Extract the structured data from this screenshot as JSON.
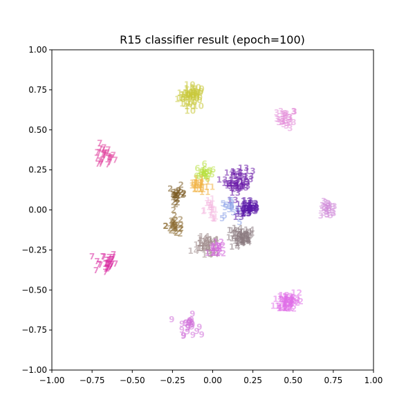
{
  "chart_data": {
    "type": "scatter",
    "title": "R15 classifier result (epoch=100)",
    "xlabel": "",
    "ylabel": "",
    "xlim": [
      -1.0,
      1.0
    ],
    "ylim": [
      -1.0,
      1.0
    ],
    "x_ticks": [
      "−1.00",
      "−0.75",
      "−0.50",
      "−0.25",
      "0.00",
      "0.25",
      "0.50",
      "0.75",
      "1.00"
    ],
    "y_ticks": [
      "−1.00",
      "−0.75",
      "−0.50",
      "−0.25",
      "0.00",
      "0.25",
      "0.50",
      "0.75",
      "1.00"
    ],
    "grid": false,
    "marker": "class label text",
    "clusters": [
      {
        "label": "10",
        "center": [
          -0.13,
          0.71
        ],
        "spread": 0.035,
        "count": 32,
        "color": "#c8c83a"
      },
      {
        "label": "3",
        "center": [
          0.46,
          0.57
        ],
        "spread": 0.03,
        "count": 28,
        "color": "#e48ed8"
      },
      {
        "label": "7",
        "center": [
          -0.68,
          0.33
        ],
        "spread": 0.035,
        "count": 28,
        "color": "#e0409c"
      },
      {
        "label": "3",
        "center": [
          0.72,
          0.0
        ],
        "spread": 0.025,
        "count": 24,
        "color": "#d08ad8"
      },
      {
        "label": "7",
        "center": [
          -0.67,
          -0.33
        ],
        "spread": 0.035,
        "count": 30,
        "color": "#d82aa0"
      },
      {
        "label": "12",
        "center": [
          0.47,
          -0.57
        ],
        "spread": 0.035,
        "count": 32,
        "color": "#e070e8"
      },
      {
        "label": "9",
        "center": [
          -0.15,
          -0.72
        ],
        "spread": 0.03,
        "count": 24,
        "color": "#d070d8"
      },
      {
        "label": "6",
        "center": [
          -0.05,
          0.23
        ],
        "spread": 0.025,
        "count": 22,
        "color": "#b8e040"
      },
      {
        "label": "11",
        "center": [
          -0.09,
          0.15
        ],
        "spread": 0.025,
        "count": 14,
        "color": "#f0b040"
      },
      {
        "label": "13",
        "center": [
          0.16,
          0.18
        ],
        "spread": 0.035,
        "count": 32,
        "color": "#6a1aa8"
      },
      {
        "label": "2",
        "center": [
          -0.22,
          0.1
        ],
        "spread": 0.025,
        "count": 24,
        "color": "#7a5a20"
      },
      {
        "label": "1",
        "center": [
          -0.01,
          0.0
        ],
        "spread": 0.03,
        "count": 20,
        "color": "#f4b8e0"
      },
      {
        "label": "5",
        "center": [
          0.1,
          0.0
        ],
        "spread": 0.03,
        "count": 16,
        "color": "#8aa0e8"
      },
      {
        "label": "13",
        "center": [
          0.22,
          0.01
        ],
        "spread": 0.03,
        "count": 30,
        "color": "#5a18a8"
      },
      {
        "label": "2",
        "center": [
          -0.23,
          -0.1
        ],
        "spread": 0.03,
        "count": 26,
        "color": "#8a6a30"
      },
      {
        "label": "14",
        "center": [
          0.17,
          -0.18
        ],
        "spread": 0.035,
        "count": 30,
        "color": "#8a7a80"
      },
      {
        "label": "14",
        "center": [
          -0.04,
          -0.23
        ],
        "spread": 0.03,
        "count": 22,
        "color": "#a08c8c"
      },
      {
        "label": "12",
        "center": [
          0.03,
          -0.25
        ],
        "spread": 0.02,
        "count": 10,
        "color": "#d060d8"
      }
    ]
  }
}
